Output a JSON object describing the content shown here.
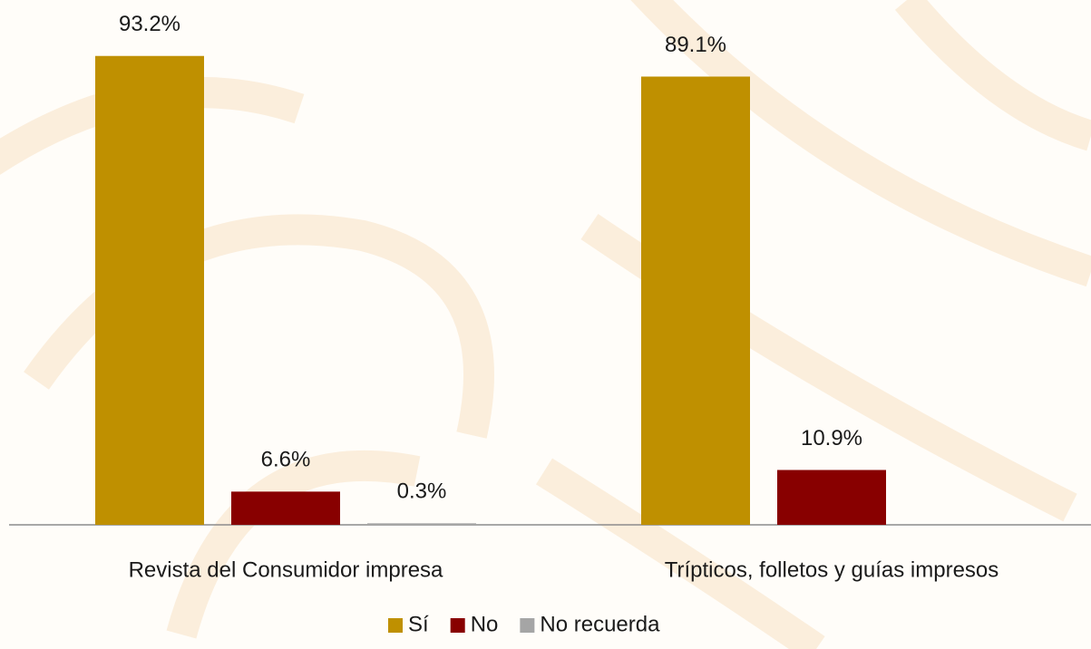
{
  "chart_data": {
    "type": "bar",
    "categories": [
      "Revista del Consumidor impresa",
      "Trípticos, folletos y guías impresos"
    ],
    "series": [
      {
        "name": "Sí",
        "color": "#bf9000",
        "values": [
          93.2,
          89.1
        ],
        "value_labels": [
          "93.2%",
          "89.1%"
        ]
      },
      {
        "name": "No",
        "color": "#880000",
        "values": [
          6.6,
          10.9
        ],
        "value_labels": [
          "6.6%",
          "10.9%"
        ]
      },
      {
        "name": "No recuerda",
        "color": "#a5a5a5",
        "values": [
          0.3,
          null
        ],
        "value_labels": [
          "0.3%",
          null
        ]
      }
    ],
    "ylim": [
      0,
      100
    ],
    "legend": "bottom"
  }
}
